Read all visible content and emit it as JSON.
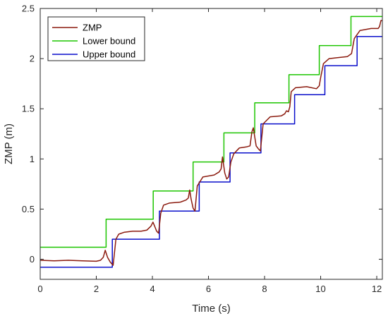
{
  "chart_data": {
    "type": "line",
    "title": "",
    "xlabel": "Time (s)",
    "ylabel": "ZMP (m)",
    "xlim": [
      0,
      12.2
    ],
    "ylim": [
      -0.2,
      2.5
    ],
    "xticks": [
      0,
      2,
      4,
      6,
      8,
      10,
      12
    ],
    "xtick_labels": [
      "0",
      "2",
      "4",
      "6",
      "8",
      "10",
      "12"
    ],
    "yticks": [
      0,
      0.5,
      1,
      1.5,
      2,
      2.5
    ],
    "ytick_labels": [
      "0",
      "0.5",
      "1",
      "1.5",
      "2",
      "2.5"
    ],
    "grid": false,
    "legend_position": "top-left",
    "series": [
      {
        "name": "ZMP",
        "color": "#8B1A0E",
        "x": [
          0.0,
          0.5,
          1.0,
          1.5,
          2.0,
          2.15,
          2.25,
          2.32,
          2.4,
          2.5,
          2.6,
          2.7,
          2.8,
          3.0,
          3.3,
          3.6,
          3.8,
          3.95,
          4.02,
          4.08,
          4.15,
          4.22,
          4.3,
          4.4,
          4.6,
          5.0,
          5.2,
          5.28,
          5.33,
          5.38,
          5.45,
          5.52,
          5.6,
          5.8,
          6.2,
          6.38,
          6.45,
          6.5,
          6.58,
          6.65,
          6.72,
          6.8,
          6.9,
          7.1,
          7.35,
          7.48,
          7.55,
          7.6,
          7.65,
          7.7,
          7.78,
          7.85,
          7.95,
          8.2,
          8.6,
          8.72,
          8.78,
          8.85,
          8.9,
          8.95,
          9.1,
          9.5,
          9.85,
          9.95,
          10.0,
          10.1,
          10.3,
          10.6,
          10.95,
          11.1,
          11.2,
          11.4,
          11.8,
          12.05,
          12.1,
          12.15,
          12.2
        ],
        "y": [
          -0.01,
          -0.015,
          -0.01,
          -0.015,
          -0.02,
          -0.01,
          0.02,
          0.09,
          0.02,
          -0.03,
          -0.06,
          0.2,
          0.25,
          0.27,
          0.28,
          0.28,
          0.29,
          0.33,
          0.37,
          0.33,
          0.28,
          0.26,
          0.46,
          0.54,
          0.56,
          0.57,
          0.59,
          0.61,
          0.69,
          0.6,
          0.51,
          0.48,
          0.73,
          0.82,
          0.84,
          0.87,
          0.9,
          1.02,
          0.86,
          0.8,
          0.82,
          0.97,
          1.05,
          1.11,
          1.12,
          1.13,
          1.27,
          1.31,
          1.22,
          1.13,
          1.1,
          1.08,
          1.35,
          1.42,
          1.43,
          1.45,
          1.48,
          1.47,
          1.52,
          1.67,
          1.71,
          1.72,
          1.7,
          1.73,
          1.81,
          1.95,
          2.0,
          2.01,
          2.02,
          2.05,
          2.2,
          2.28,
          2.3,
          2.3,
          2.32,
          2.38,
          2.38
        ]
      },
      {
        "name": "Lower bound",
        "color": "#1DC500",
        "x": [
          0.0,
          2.35,
          2.35,
          4.03,
          4.03,
          5.45,
          5.45,
          6.55,
          6.55,
          7.65,
          7.65,
          8.87,
          8.87,
          9.95,
          9.95,
          11.08,
          11.08,
          12.2
        ],
        "y": [
          0.12,
          0.12,
          0.4,
          0.4,
          0.68,
          0.68,
          0.97,
          0.97,
          1.26,
          1.26,
          1.56,
          1.56,
          1.84,
          1.84,
          2.13,
          2.13,
          2.42,
          2.42
        ]
      },
      {
        "name": "Upper bound",
        "color": "#0A0FCB",
        "x": [
          0.0,
          2.57,
          2.57,
          4.25,
          4.25,
          5.67,
          5.67,
          6.77,
          6.77,
          7.87,
          7.87,
          9.07,
          9.07,
          10.15,
          10.15,
          11.3,
          11.3,
          12.2
        ],
        "y": [
          -0.08,
          -0.08,
          0.2,
          0.2,
          0.48,
          0.48,
          0.77,
          0.77,
          1.06,
          1.06,
          1.35,
          1.35,
          1.64,
          1.64,
          1.93,
          1.93,
          2.22,
          2.22
        ]
      }
    ]
  }
}
